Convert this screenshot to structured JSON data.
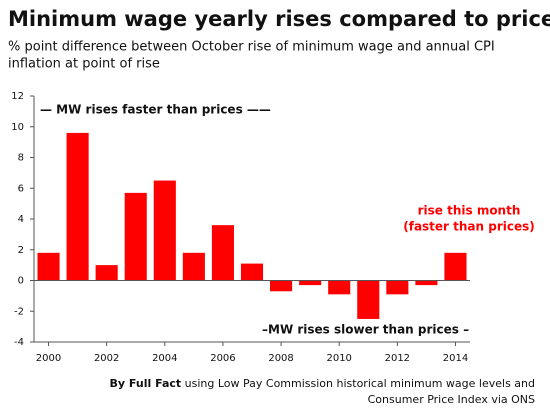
{
  "chart_data": {
    "type": "bar",
    "title": "Minimum wage yearly rises compared to prices",
    "subtitle": [
      "% point difference between October rise of minimum wage and annual CPI",
      "inflation at point of rise"
    ],
    "categories": [
      "2000",
      null,
      "2002",
      null,
      "2004",
      null,
      "2006",
      null,
      "2008",
      null,
      "2010",
      null,
      "2012",
      null,
      "2014"
    ],
    "values": [
      1.8,
      9.6,
      1.0,
      5.7,
      6.5,
      1.8,
      3.6,
      1.1,
      -0.7,
      -0.3,
      -0.9,
      -2.5,
      -0.9,
      -0.3,
      1.8
    ],
    "color": "#ff0000",
    "ylim": [
      -4,
      12
    ],
    "yticks": [
      -4,
      -2,
      0,
      2,
      4,
      6,
      8,
      10,
      12
    ],
    "annotations": [
      "— MW rises faster than prices ——",
      "–MW rises slower than prices –",
      "rise this month",
      "(faster than prices)"
    ],
    "source": [
      "By Full Fact",
      "using Low Pay Commission historical minimum wage levels and",
      "Consumer Price Index via ONS"
    ]
  }
}
